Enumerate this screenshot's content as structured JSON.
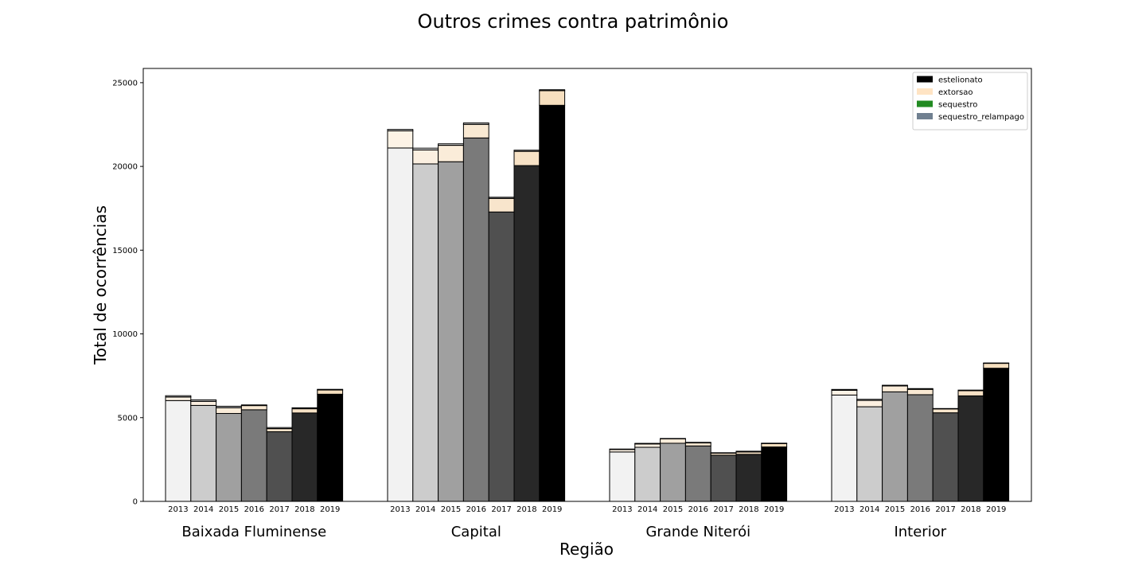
{
  "chart_data": {
    "type": "bar",
    "stacked": true,
    "title": "Outros crimes contra patrimônio",
    "xlabel": "Região",
    "ylabel": "Total de ocorrências",
    "ylim": [
      0,
      25850
    ],
    "yticks": [
      0,
      5000,
      10000,
      15000,
      20000,
      25000
    ],
    "regions": [
      "Baixada Fluminense",
      "Capital",
      "Grande Niterói",
      "Interior"
    ],
    "years": [
      "2013",
      "2014",
      "2015",
      "2016",
      "2017",
      "2018",
      "2019"
    ],
    "year_colors": [
      "#f2f2f2",
      "#cccccc",
      "#a0a0a0",
      "#7a7a7a",
      "#505050",
      "#282828",
      "#000000"
    ],
    "legend": {
      "position": "top-right",
      "entries": [
        {
          "name": "estelionato",
          "color": "#000000"
        },
        {
          "name": "extorsao",
          "color": "#ffe4c4"
        },
        {
          "name": "sequestro",
          "color": "#228b22"
        },
        {
          "name": "sequestro_relampago",
          "color": "#708090"
        }
      ]
    },
    "series": [
      {
        "name": "estelionato",
        "values": [
          [
            6020,
            5730,
            5250,
            5470,
            4160,
            5280,
            6400
          ],
          [
            21100,
            20150,
            20280,
            21700,
            17280,
            20050,
            23650
          ],
          [
            2950,
            3230,
            3470,
            3310,
            2760,
            2810,
            3250
          ],
          [
            6350,
            5650,
            6540,
            6370,
            5290,
            6300,
            7950
          ]
        ]
      },
      {
        "name": "extorsao",
        "values": [
          [
            210,
            240,
            340,
            250,
            180,
            250,
            250
          ],
          [
            1020,
            830,
            980,
            810,
            810,
            850,
            870
          ],
          [
            150,
            200,
            260,
            180,
            120,
            140,
            200
          ],
          [
            280,
            380,
            350,
            320,
            230,
            310,
            290
          ]
        ]
      },
      {
        "name": "sequestro",
        "values": [
          [
            10,
            10,
            10,
            10,
            10,
            10,
            10
          ],
          [
            10,
            10,
            10,
            10,
            10,
            10,
            10
          ],
          [
            5,
            5,
            5,
            5,
            5,
            5,
            5
          ],
          [
            5,
            5,
            5,
            5,
            5,
            5,
            5
          ]
        ]
      },
      {
        "name": "sequestro_relampago",
        "values": [
          [
            70,
            80,
            80,
            30,
            60,
            50,
            30
          ],
          [
            80,
            100,
            80,
            80,
            60,
            60,
            50
          ],
          [
            20,
            30,
            20,
            30,
            20,
            40,
            20
          ],
          [
            50,
            60,
            40,
            40,
            20,
            30,
            20
          ]
        ]
      }
    ]
  }
}
